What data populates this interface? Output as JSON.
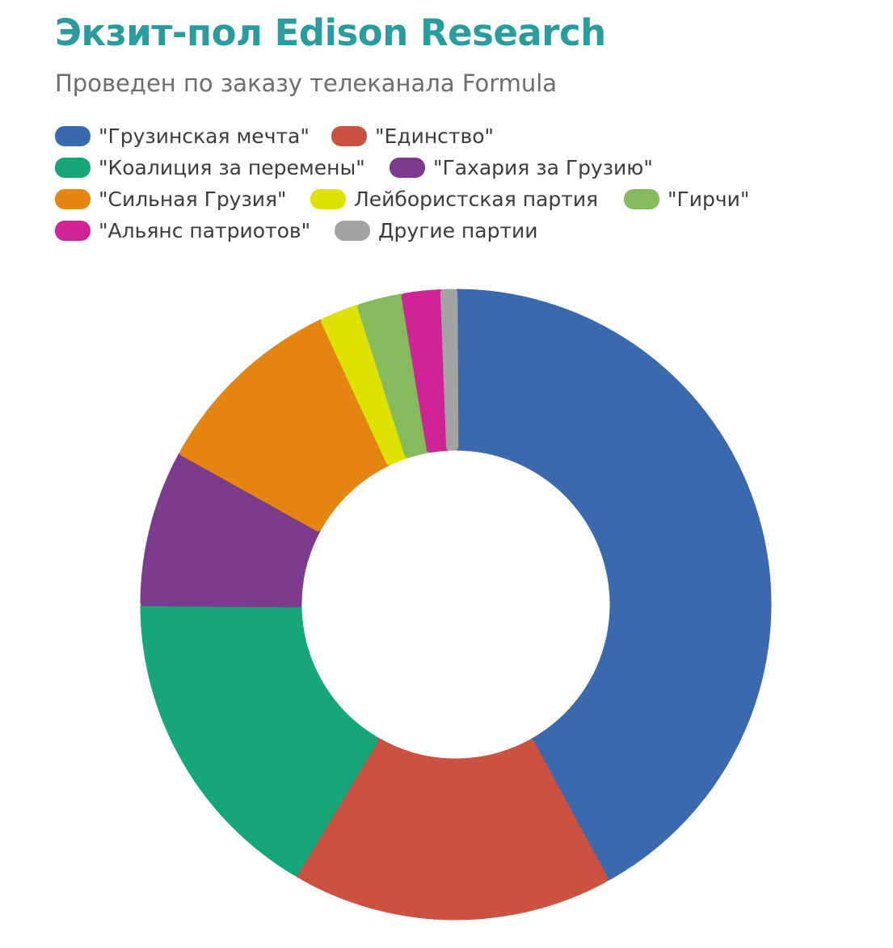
{
  "header": {
    "title": "Экзит-пол Edison Research",
    "subtitle": "Проведен по заказу телеканала Formula"
  },
  "chart_data": {
    "type": "pie",
    "style": "donut",
    "legend_position": "top-left",
    "series": [
      {
        "name": "\"Грузинская мечта\"",
        "value": 42.0,
        "color": "#3a69ad"
      },
      {
        "name": "\"Единство\"",
        "value": 16.5,
        "color": "#cb5141"
      },
      {
        "name": "\"Коалиция за перемены\"",
        "value": 16.5,
        "color": "#15a67a"
      },
      {
        "name": "\"Гахария за Грузию\"",
        "value": 8.0,
        "color": "#7c3b8c"
      },
      {
        "name": "\"Сильная Грузия\"",
        "value": 10.0,
        "color": "#e48512"
      },
      {
        "name": "Лейбористская партия",
        "value": 2.0,
        "color": "#dfe100"
      },
      {
        "name": "\"Гирчи\"",
        "value": 2.3,
        "color": "#85bb5c"
      },
      {
        "name": "\"Альянс патриотов\"",
        "value": 2.0,
        "color": "#d02496"
      },
      {
        "name": "Другие партии",
        "value": 0.7,
        "color": "#a3a3a3"
      }
    ]
  }
}
